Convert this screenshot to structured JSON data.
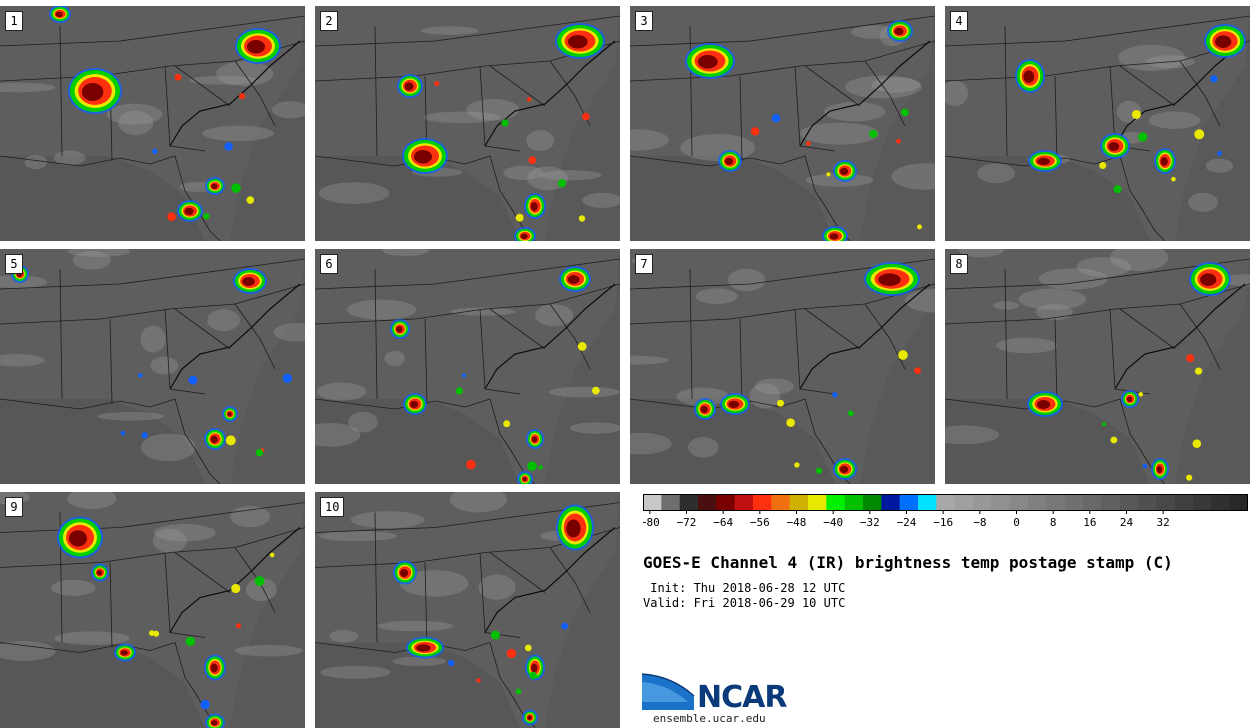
{
  "title": "GOES-E Channel 4 (IR) brightness temp postage stamp (C)",
  "init": " Init: Thu 2018-06-28 12 UTC",
  "valid": "Valid: Fri 2018-06-29 10 UTC",
  "panels": [
    "1",
    "2",
    "3",
    "4",
    "5",
    "6",
    "7",
    "8",
    "9",
    "10"
  ],
  "colorbar": {
    "ticks": [
      "−80",
      "−72",
      "−64",
      "−56",
      "−48",
      "−40",
      "−32",
      "−24",
      "−16",
      "−8",
      "0",
      "8",
      "16",
      "24",
      "32"
    ],
    "colors": [
      "#c8c8c8",
      "#6e6e6e",
      "#2e2e2e",
      "#4a1010",
      "#7a0000",
      "#c01010",
      "#ff3010",
      "#f07010",
      "#d0b000",
      "#e8e800",
      "#00f000",
      "#00c000",
      "#008a00",
      "#0018a0",
      "#0070ff",
      "#00e0ff",
      "#a8a8a8",
      "#a0a0a0",
      "#989898",
      "#909090",
      "#888888",
      "#808080",
      "#787878",
      "#707070",
      "#686868",
      "#606060",
      "#585858",
      "#505050",
      "#484848",
      "#404040",
      "#383838",
      "#303030",
      "#282828"
    ]
  },
  "logo": {
    "name": "NCAR",
    "url": "ensemble.ucar.edu"
  }
}
